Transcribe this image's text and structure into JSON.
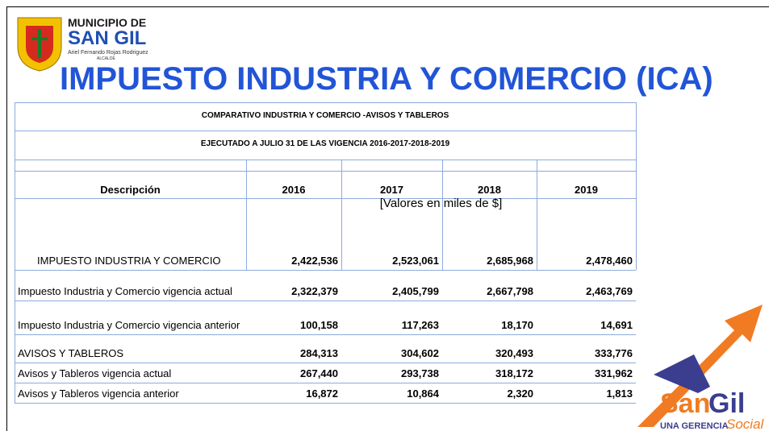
{
  "logo": {
    "line1": "MUNICIPIO DE",
    "line2": "SAN GIL",
    "mayor": "Ariel Fernando Rojas Rodriguez",
    "role": "ALCALDE"
  },
  "title": "IMPUESTO INDUSTRIA Y COMERCIO (ICA)",
  "table": {
    "caption1": "COMPARATIVO INDUSTRIA  Y COMERCIO -AVISOS Y TABLEROS",
    "caption2": "EJECUTADO  A JULIO 31 DE LAS VIGENCIA 2016-2017-2018-2019",
    "header": [
      "Descripción",
      "2016",
      "2017",
      "2018",
      "2019"
    ],
    "units": "[Valores en miles de $]",
    "rows": [
      [
        "IMPUESTO INDUSTRIA Y COMERCIO",
        "2,422,536",
        "2,523,061",
        "2,685,968",
        "2,478,460"
      ],
      [
        "Impuesto Industria y Comercio vigencia actual",
        "2,322,379",
        "2,405,799",
        "2,667,798",
        "2,463,769"
      ],
      [
        "Impuesto Industria y Comercio vigencia anterior",
        "100,158",
        "117,263",
        "18,170",
        "14,691"
      ],
      [
        "AVISOS Y TABLEROS",
        "284,313",
        "304,602",
        "320,493",
        "333,776"
      ],
      [
        "Avisos y Tableros vigencia actual",
        "267,440",
        "293,738",
        "318,172",
        "331,962"
      ],
      [
        "Avisos y Tableros vigencia anterior",
        "16,872",
        "10,864",
        "2,320",
        "1,813"
      ]
    ]
  },
  "brand": {
    "name1": "San",
    "name2": "Gil",
    "tagline1": "UNA GERENCIA",
    "tagline2": "Social"
  }
}
